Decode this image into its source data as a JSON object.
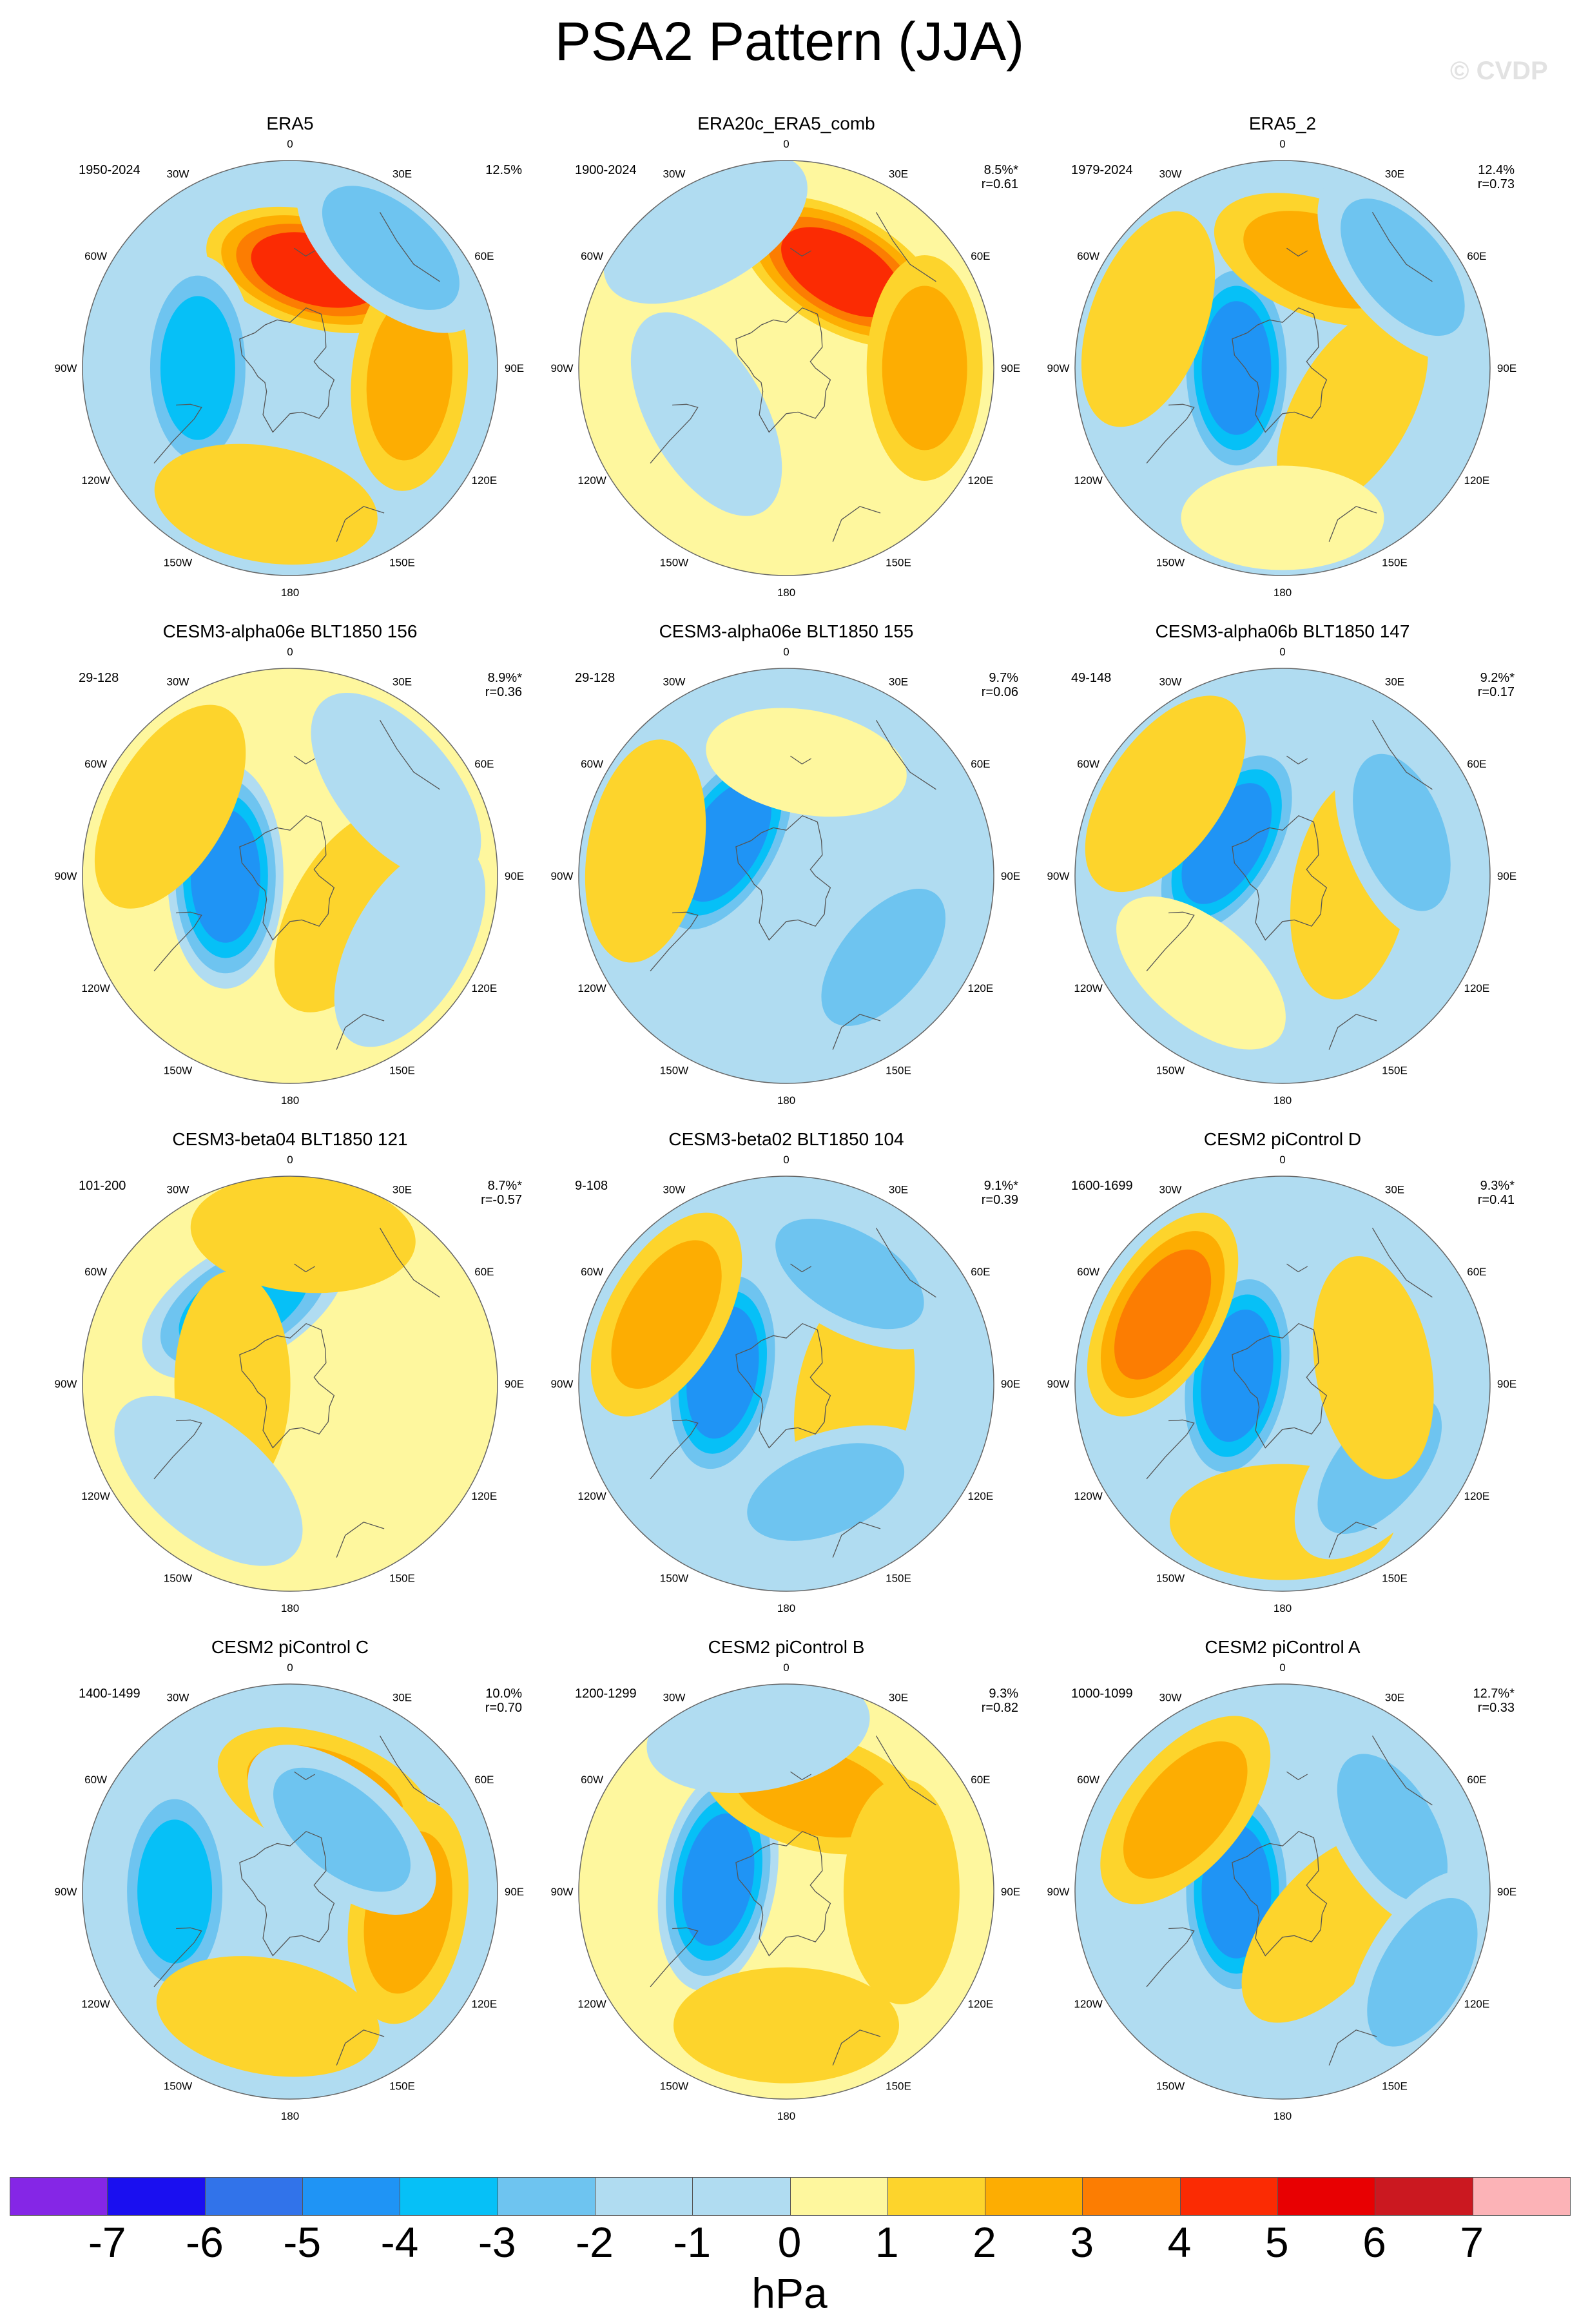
{
  "title": "PSA2 Pattern (JJA)",
  "watermark": "© CVDP",
  "lon_labels": [
    "0",
    "30E",
    "60E",
    "90E",
    "120E",
    "150E",
    "180",
    "150W",
    "120W",
    "90W",
    "60W",
    "30W"
  ],
  "colors": {
    "-7": "#8526e6",
    "-6": "#1a0ff0",
    "-5": "#3173ea",
    "-4": "#1f94f5",
    "-3": "#06c0f7",
    "-2": "#6ec4f0",
    "-1": "#b0dcf1",
    "0": "#fef79e",
    "1": "#fdd42c",
    "2": "#fdad02",
    "3": "#fc7d02",
    "4": "#fb2b03",
    "5": "#e80002",
    "6": "#cb1820",
    "7": "#fcb3b7"
  },
  "chart_data": [
    {
      "type": "heatmap",
      "title": "ERA5",
      "years": "1950-2024",
      "pct": "12.5%",
      "r": "",
      "bg": "-1",
      "features": [
        {
          "lon": 165,
          "colat": 44,
          "peak": 4
        },
        {
          "lon": 85,
          "colat": 52,
          "peak": 2
        },
        {
          "lon": -90,
          "colat": 40,
          "peak": -3
        },
        {
          "lon": 140,
          "colat": 68,
          "peak": -2
        },
        {
          "lon": -10,
          "colat": 60,
          "peak": 1
        }
      ]
    },
    {
      "type": "heatmap",
      "title": "ERA20c_ERA5_comb",
      "years": "1900-2024",
      "pct": "8.5%*",
      "r": "r=0.61",
      "bg": "0",
      "features": [
        {
          "lon": 150,
          "colat": 48,
          "peak": 4
        },
        {
          "lon": 90,
          "colat": 60,
          "peak": 2
        },
        {
          "lon": -60,
          "colat": 40,
          "peak": -1
        },
        {
          "lon": -150,
          "colat": 70,
          "peak": -1
        }
      ]
    },
    {
      "type": "heatmap",
      "title": "ERA5_2",
      "years": "1979-2024",
      "pct": "12.4%",
      "r": "r=0.73",
      "bg": "-1",
      "features": [
        {
          "lon": -90,
          "colat": 20,
          "peak": -4
        },
        {
          "lon": 160,
          "colat": 50,
          "peak": 2
        },
        {
          "lon": 60,
          "colat": 35,
          "peak": 1
        },
        {
          "lon": 130,
          "colat": 68,
          "peak": -2
        },
        {
          "lon": -110,
          "colat": 62,
          "peak": 1
        },
        {
          "lon": 0,
          "colat": 65,
          "peak": 0
        }
      ]
    },
    {
      "type": "heatmap",
      "title": "CESM3-alpha06e BLT1850 156",
      "years": "29-128",
      "pct": "8.9%*",
      "r": "r=0.36",
      "bg": "0",
      "features": [
        {
          "lon": -90,
          "colat": 28,
          "peak": -4
        },
        {
          "lon": -120,
          "colat": 60,
          "peak": 1
        },
        {
          "lon": 60,
          "colat": 30,
          "peak": 1
        },
        {
          "lon": 60,
          "colat": 60,
          "peak": -1
        },
        {
          "lon": 130,
          "colat": 60,
          "peak": -1
        }
      ]
    },
    {
      "type": "heatmap",
      "title": "CESM3-alpha06e BLT1850 155",
      "years": "29-128",
      "pct": "9.7%",
      "r": "r=0.06",
      "bg": "-1",
      "features": [
        {
          "lon": -120,
          "colat": 30,
          "peak": -4
        },
        {
          "lon": -100,
          "colat": 62,
          "peak": 1
        },
        {
          "lon": 170,
          "colat": 50,
          "peak": 0
        },
        {
          "lon": 50,
          "colat": 55,
          "peak": -2
        }
      ]
    },
    {
      "type": "heatmap",
      "title": "CESM3-alpha06b BLT1850 147",
      "years": "49-148",
      "pct": "9.2%*",
      "r": "r=0.17",
      "bg": "-1",
      "features": [
        {
          "lon": -120,
          "colat": 28,
          "peak": -4
        },
        {
          "lon": -125,
          "colat": 62,
          "peak": 1
        },
        {
          "lon": 80,
          "colat": 30,
          "peak": 1
        },
        {
          "lon": 110,
          "colat": 55,
          "peak": -2
        },
        {
          "lon": -40,
          "colat": 55,
          "peak": 0
        }
      ]
    },
    {
      "type": "heatmap",
      "title": "CESM3-beta04 BLT1850 121",
      "years": "101-200",
      "pct": "8.7%*",
      "r": "r=-0.57",
      "bg": "0",
      "features": [
        {
          "lon": -150,
          "colat": 40,
          "peak": -3
        },
        {
          "lon": 175,
          "colat": 65,
          "peak": 1
        },
        {
          "lon": -90,
          "colat": 25,
          "peak": 1
        },
        {
          "lon": -40,
          "colat": 55,
          "peak": -1
        }
      ]
    },
    {
      "type": "heatmap",
      "title": "CESM3-beta02 BLT1850 104",
      "years": "9-108",
      "pct": "9.1%*",
      "r": "r=0.39",
      "bg": "-1",
      "features": [
        {
          "lon": -100,
          "colat": 28,
          "peak": -4
        },
        {
          "lon": -120,
          "colat": 60,
          "peak": 2
        },
        {
          "lon": 80,
          "colat": 30,
          "peak": 1
        },
        {
          "lon": 150,
          "colat": 55,
          "peak": -2
        },
        {
          "lon": 20,
          "colat": 50,
          "peak": -2
        }
      ]
    },
    {
      "type": "heatmap",
      "title": "CESM2 piControl D",
      "years": "1600-1699",
      "pct": "9.3%*",
      "r": "r=0.41",
      "bg": "-1",
      "features": [
        {
          "lon": -100,
          "colat": 20,
          "peak": -4
        },
        {
          "lon": -120,
          "colat": 60,
          "peak": 3
        },
        {
          "lon": 0,
          "colat": 60,
          "peak": 1
        },
        {
          "lon": 50,
          "colat": 55,
          "peak": -2
        },
        {
          "lon": 100,
          "colat": 40,
          "peak": 1
        }
      ]
    },
    {
      "type": "heatmap",
      "title": "CESM2 piControl C",
      "years": "1400-1499",
      "pct": "10.0%",
      "r": "r=0.70",
      "bg": "-1",
      "features": [
        {
          "lon": -90,
          "colat": 50,
          "peak": -3
        },
        {
          "lon": 160,
          "colat": 45,
          "peak": 2
        },
        {
          "lon": 80,
          "colat": 52,
          "peak": 2
        },
        {
          "lon": 140,
          "colat": 35,
          "peak": -2
        },
        {
          "lon": -10,
          "colat": 55,
          "peak": 1
        }
      ]
    },
    {
      "type": "heatmap",
      "title": "CESM2 piControl B",
      "years": "1200-1299",
      "pct": "9.3%",
      "r": "r=0.82",
      "bg": "0",
      "features": [
        {
          "lon": -100,
          "colat": 30,
          "peak": -4
        },
        {
          "lon": 165,
          "colat": 45,
          "peak": 2
        },
        {
          "lon": 90,
          "colat": 50,
          "peak": 1
        },
        {
          "lon": -170,
          "colat": 70,
          "peak": -1
        },
        {
          "lon": 0,
          "colat": 58,
          "peak": 1
        }
      ]
    },
    {
      "type": "heatmap",
      "title": "CESM2 piControl A",
      "years": "1000-1099",
      "pct": "12.7%*",
      "r": "r=0.33",
      "bg": "-1",
      "features": [
        {
          "lon": -90,
          "colat": 20,
          "peak": -4
        },
        {
          "lon": -130,
          "colat": 55,
          "peak": 2
        },
        {
          "lon": 50,
          "colat": 25,
          "peak": 1
        },
        {
          "lon": 120,
          "colat": 55,
          "peak": -2
        },
        {
          "lon": 60,
          "colat": 70,
          "peak": -2
        }
      ]
    }
  ],
  "colorbar": {
    "levels": [
      "-7",
      "-6",
      "-5",
      "-4",
      "-3",
      "-2",
      "-1",
      "0",
      "1",
      "2",
      "3",
      "4",
      "5",
      "6",
      "7"
    ],
    "unit": "hPa"
  }
}
